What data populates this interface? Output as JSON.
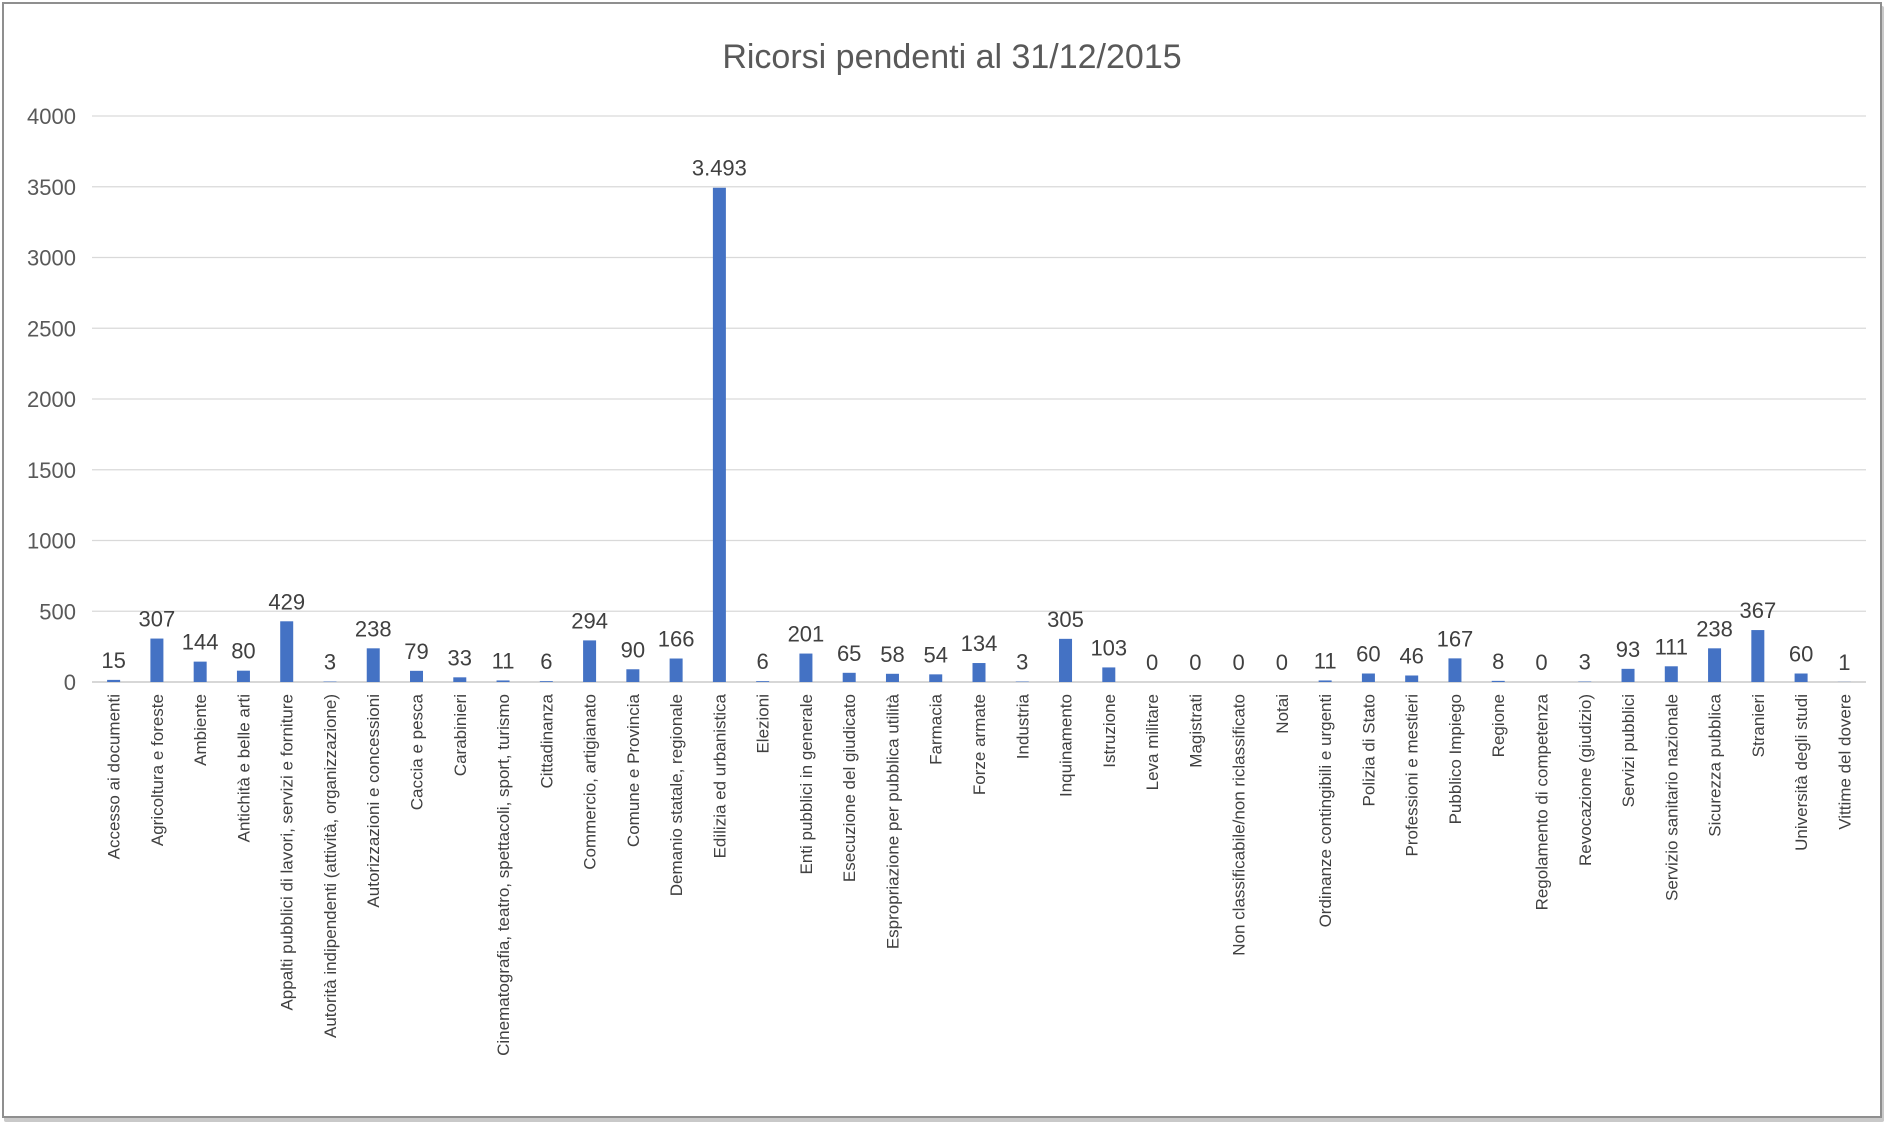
{
  "chart_data": {
    "type": "bar",
    "title": "Ricorsi pendenti al 31/12/2015",
    "xlabel": "",
    "ylabel": "",
    "ylim": [
      0,
      4000
    ],
    "yticks": [
      "0",
      "500",
      "1000",
      "1500",
      "2000",
      "2500",
      "3000",
      "3500",
      "4000"
    ],
    "grid": true,
    "legend": "none",
    "bar_color": "#4472C4",
    "categories": [
      "Accesso ai documenti",
      "Agricoltura e foreste",
      "Ambiente",
      "Antichità e belle arti",
      "Appalti pubblici di lavori, servizi e forniture",
      "Autorità indipendenti (attività, organizzazione)",
      "Autorizzazioni e concessioni",
      "Caccia e pesca",
      "Carabinieri",
      "Cinematografia, teatro, spettacoli, sport, turismo",
      "Cittadinanza",
      "Commercio, artigianato",
      "Comune e Provincia",
      "Demanio statale, regionale",
      "Edilizia ed urbanistica",
      "Elezioni",
      "Enti pubblici in generale",
      "Esecuzione del giudicato",
      "Espropriazione per pubblica utilità",
      "Farmacia",
      "Forze armate",
      "Industria",
      "Inquinamento",
      "Istruzione",
      "Leva militare",
      "Magistrati",
      "Non classificabile/non riclassificato",
      "Notai",
      "Ordinanze contingibili e urgenti",
      "Polizia di Stato",
      "Professioni e mestieri",
      "Pubblico Impiego",
      "Regione",
      "Regolamento di competenza",
      "Revocazione (giudizio)",
      "Servizi pubblici",
      "Servizio sanitario nazionale",
      "Sicurezza pubblica",
      "Stranieri",
      "Università degli studi",
      "Vittime del dovere"
    ],
    "values": [
      15,
      307,
      144,
      80,
      429,
      3,
      238,
      79,
      33,
      11,
      6,
      294,
      90,
      166,
      3493,
      6,
      201,
      65,
      58,
      54,
      134,
      3,
      305,
      103,
      0,
      0,
      0,
      0,
      11,
      60,
      46,
      167,
      8,
      0,
      3,
      93,
      111,
      238,
      367,
      60,
      1
    ],
    "data_labels": [
      "15",
      "307",
      "144",
      "80",
      "429",
      "3",
      "238",
      "79",
      "33",
      "11",
      "6",
      "294",
      "90",
      "166",
      "3.493",
      "6",
      "201",
      "65",
      "58",
      "54",
      "134",
      "3",
      "305",
      "103",
      "0",
      "0",
      "0",
      "0",
      "11",
      "60",
      "46",
      "167",
      "8",
      "0",
      "3",
      "93",
      "111",
      "238",
      "367",
      "60",
      "1"
    ]
  }
}
